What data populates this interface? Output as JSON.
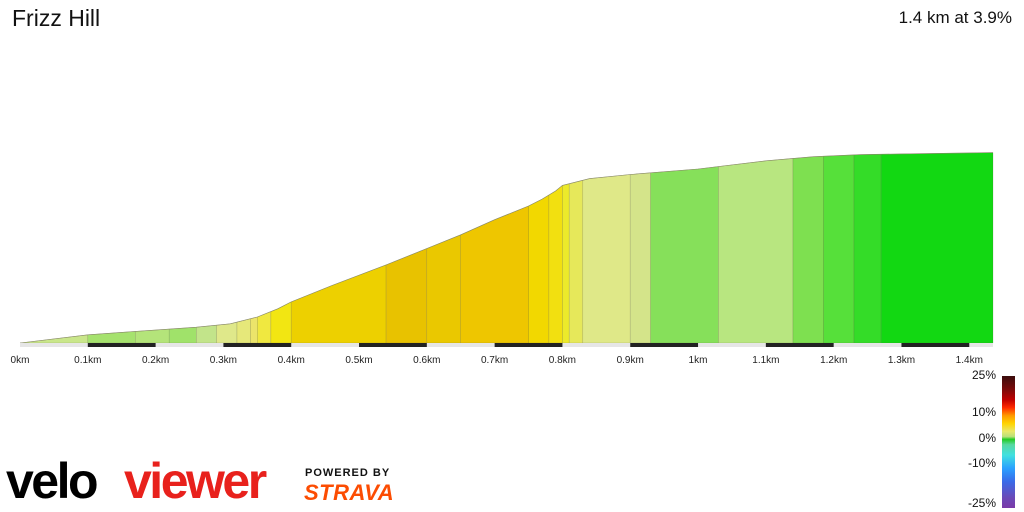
{
  "segment": {
    "title": "Frizz Hill",
    "summary": "1.4 km at 3.9%"
  },
  "chart_data": {
    "type": "area",
    "title": "Frizz Hill",
    "xlabel": "",
    "ylabel": "",
    "xlim": [
      0,
      1.435
    ],
    "x_ticks": [
      {
        "label": "0km",
        "value": 0
      },
      {
        "label": "0.1km",
        "value": 0.1
      },
      {
        "label": "0.2km",
        "value": 0.2
      },
      {
        "label": "0.3km",
        "value": 0.3
      },
      {
        "label": "0.4km",
        "value": 0.4
      },
      {
        "label": "0.5km",
        "value": 0.5
      },
      {
        "label": "0.6km",
        "value": 0.6
      },
      {
        "label": "0.7km",
        "value": 0.7
      },
      {
        "label": "0.8km",
        "value": 0.8
      },
      {
        "label": "0.9km",
        "value": 0.9
      },
      {
        "label": "1km",
        "value": 1.0
      },
      {
        "label": "1.1km",
        "value": 1.1
      },
      {
        "label": "1.2km",
        "value": 1.2
      },
      {
        "label": "1.3km",
        "value": 1.3
      },
      {
        "label": "1.4km",
        "value": 1.4
      }
    ],
    "profile_points": [
      [
        0.0,
        0
      ],
      [
        0.1,
        6
      ],
      [
        0.17,
        8.5
      ],
      [
        0.26,
        11.5
      ],
      [
        0.31,
        14
      ],
      [
        0.35,
        19
      ],
      [
        0.38,
        25
      ],
      [
        0.4,
        30
      ],
      [
        0.46,
        42
      ],
      [
        0.54,
        57
      ],
      [
        0.6,
        69
      ],
      [
        0.65,
        79
      ],
      [
        0.7,
        90
      ],
      [
        0.75,
        100
      ],
      [
        0.77,
        105
      ],
      [
        0.79,
        111
      ],
      [
        0.8,
        115
      ],
      [
        0.84,
        120
      ],
      [
        0.9,
        123
      ],
      [
        1.0,
        127
      ],
      [
        1.1,
        133
      ],
      [
        1.17,
        136
      ],
      [
        1.24,
        137.5
      ],
      [
        1.3,
        138
      ],
      [
        1.435,
        139
      ]
    ],
    "segments": [
      {
        "from": 0.0,
        "to": 0.1,
        "color": "#c9e68a"
      },
      {
        "from": 0.1,
        "to": 0.17,
        "color": "#a6e26e"
      },
      {
        "from": 0.17,
        "to": 0.22,
        "color": "#b4e47a"
      },
      {
        "from": 0.22,
        "to": 0.26,
        "color": "#a0e26a"
      },
      {
        "from": 0.26,
        "to": 0.29,
        "color": "#c2e48a"
      },
      {
        "from": 0.29,
        "to": 0.32,
        "color": "#dfe88a"
      },
      {
        "from": 0.32,
        "to": 0.34,
        "color": "#e6e87a"
      },
      {
        "from": 0.34,
        "to": 0.35,
        "color": "#ece46a"
      },
      {
        "from": 0.35,
        "to": 0.37,
        "color": "#f0e840"
      },
      {
        "from": 0.37,
        "to": 0.4,
        "color": "#f2e612"
      },
      {
        "from": 0.4,
        "to": 0.54,
        "color": "#edd000"
      },
      {
        "from": 0.54,
        "to": 0.6,
        "color": "#e8c200"
      },
      {
        "from": 0.6,
        "to": 0.65,
        "color": "#eac800"
      },
      {
        "from": 0.65,
        "to": 0.75,
        "color": "#eec600"
      },
      {
        "from": 0.75,
        "to": 0.78,
        "color": "#f2d800"
      },
      {
        "from": 0.78,
        "to": 0.8,
        "color": "#f2e010"
      },
      {
        "from": 0.8,
        "to": 0.81,
        "color": "#ecea2a"
      },
      {
        "from": 0.81,
        "to": 0.83,
        "color": "#e6e85a"
      },
      {
        "from": 0.83,
        "to": 0.9,
        "color": "#dfe888"
      },
      {
        "from": 0.9,
        "to": 0.93,
        "color": "#d4e48a"
      },
      {
        "from": 0.93,
        "to": 1.03,
        "color": "#86e05a"
      },
      {
        "from": 1.03,
        "to": 1.14,
        "color": "#b8e680"
      },
      {
        "from": 1.14,
        "to": 1.185,
        "color": "#7ee050"
      },
      {
        "from": 1.185,
        "to": 1.23,
        "color": "#56e03a"
      },
      {
        "from": 1.23,
        "to": 1.27,
        "color": "#34dc28"
      },
      {
        "from": 1.27,
        "to": 1.435,
        "color": "#12d812"
      }
    ],
    "legend": {
      "type": "colorbar",
      "labels": [
        "25%",
        "10%",
        "0%",
        "-10%",
        "-25%"
      ]
    },
    "grid": false
  },
  "branding": {
    "logo_part1": "velo",
    "logo_part2": "viewer",
    "powered_by": "POWERED BY",
    "strava": "STRAVA",
    "colors": {
      "veloviewer_red": "#e8211c",
      "strava_orange": "#fc4c02"
    }
  }
}
